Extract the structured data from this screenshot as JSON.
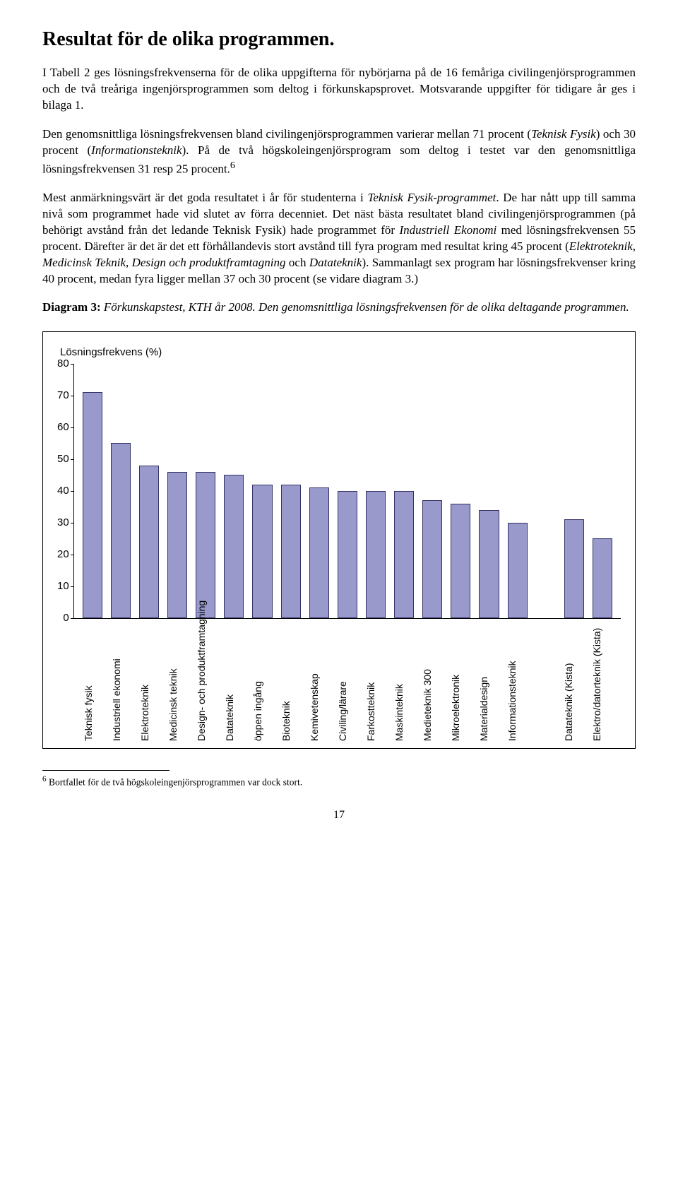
{
  "title": "Resultat för de olika programmen.",
  "paragraphs": {
    "p1_a": "I Tabell 2 ges lösningsfrekvenserna för de olika uppgifterna för nybörjarna på de 16 femåriga civilingenjörsprogrammen och de två treåriga ingenjörsprogrammen som deltog i förkunskapsprovet. Motsvarande uppgifter för tidigare år ges i bilaga 1.",
    "p2_a": "Den genomsnittliga lösningsfrekvensen bland civilingenjörsprogrammen varierar mellan 71 procent (",
    "p2_it1": "Teknisk Fysik",
    "p2_b": ") och 30 procent (",
    "p2_it2": "Informationsteknik",
    "p2_c": "). På de två högskoleingenjörsprogram som deltog i testet var den genomsnittliga lösningsfrekvensen 31 resp 25 procent.",
    "p2_sup": "6",
    "p3_a": "Mest anmärkningsvärt är det goda resultatet i år för studenterna i ",
    "p3_it1": "Teknisk Fysik-programmet",
    "p3_b": ". De har nått upp till samma nivå som programmet hade vid slutet av förra decenniet. Det näst bästa resultatet bland civilingenjörsprogrammen (på behörigt avstånd från det ledande Teknisk Fysik) hade programmet för ",
    "p3_it2": "Industriell Ekonomi",
    "p3_c": " med lösningsfrekvensen 55 procent. Därefter är det är det ett förhållandevis stort avstånd till fyra program med resultat kring 45 procent (",
    "p3_it3": "Elektroteknik",
    "p3_d": ", ",
    "p3_it4": "Medicinsk Teknik",
    "p3_e": ", ",
    "p3_it5": "Design och produktframtagning",
    "p3_f": " och ",
    "p3_it6": "Datateknik",
    "p3_g": "). Sammanlagt sex program har lösningsfrekvenser kring 40 procent, medan fyra ligger mellan 37 och 30 procent (se vidare diagram 3.)",
    "caption_bold": "Diagram 3:",
    "caption_rest": " Förkunskapstest, KTH år 2008. Den genomsnittliga lösningsfrekvensen för de olika deltagande programmen."
  },
  "chart": {
    "type": "bar",
    "ylabel": "Lösningsfrekvens (%)",
    "ylim_max": 80,
    "ytick_step": 10,
    "bar_fill": "#9999cc",
    "bar_border": "#333366",
    "background_color": "#ffffff",
    "label_fontfamily": "Arial",
    "label_fontsize": 14,
    "categories": [
      "Teknisk fysik",
      "Industriell ekonomi",
      "Elektroteknik",
      "Medicinsk teknik",
      "Design- och produktframtagning",
      "Datateknik",
      "öppen ingång",
      "Bioteknik",
      "Kemivetenskap",
      "Civiling/lärare",
      "Farkostteknik",
      "Maskinteknik",
      "Medieteknik 300",
      "Mikroelektronik",
      "Materialdesign",
      "Informationsteknik",
      "",
      "Datateknik (Kista)",
      "Elektro/datorteknik (Kista)"
    ],
    "values": [
      71,
      55,
      48,
      46,
      46,
      45,
      42,
      42,
      41,
      40,
      40,
      40,
      37,
      36,
      34,
      30,
      null,
      31,
      25
    ]
  },
  "footnote": {
    "marker": "6",
    "text": " Bortfallet för de två högskoleingenjörsprogrammen var dock stort."
  },
  "page_number": "17"
}
